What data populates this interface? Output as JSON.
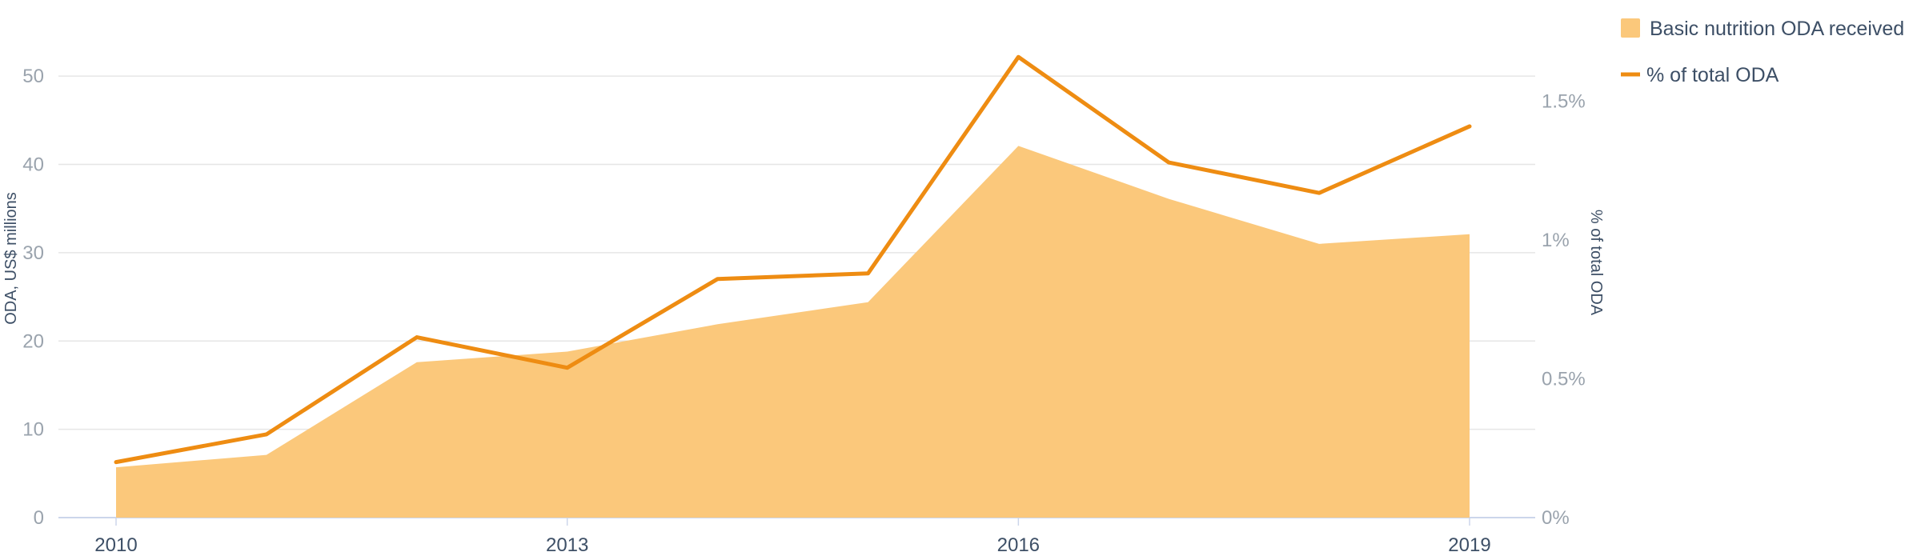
{
  "chart_data": {
    "type": "area",
    "x": [
      2010,
      2011,
      2012,
      2013,
      2014,
      2015,
      2016,
      2017,
      2018,
      2019
    ],
    "x_tick_labels": [
      "2010",
      "2013",
      "2016",
      "2019"
    ],
    "series": [
      {
        "name": "Basic nutrition ODA received",
        "type": "area",
        "axis": "left",
        "color": "#fbc87b",
        "values": [
          5.7,
          7.1,
          17.6,
          18.8,
          21.9,
          24.4,
          42.1,
          36.1,
          31.0,
          32.1
        ]
      },
      {
        "name": "% of total ODA",
        "type": "line",
        "axis": "right",
        "color": "#ee8c12",
        "values": [
          0.2,
          0.3,
          0.65,
          0.54,
          0.86,
          0.88,
          1.66,
          1.28,
          1.17,
          1.41
        ]
      }
    ],
    "y_left": {
      "label": "ODA, US$ millions",
      "ticks": [
        "0",
        "10",
        "20",
        "30",
        "40",
        "50"
      ],
      "range": [
        0,
        55
      ]
    },
    "y_right": {
      "label": "% of total ODA",
      "ticks": [
        "0%",
        "0.5%",
        "1%",
        "1.5%"
      ],
      "range": [
        0,
        1.75
      ]
    },
    "grid": true,
    "legend_position": "top-right",
    "colors": {
      "area": "#fbc87b",
      "line": "#ee8c12",
      "grid": "#e6e6e6",
      "text": "#3d4f66",
      "tick": "#9aa3ad"
    }
  }
}
